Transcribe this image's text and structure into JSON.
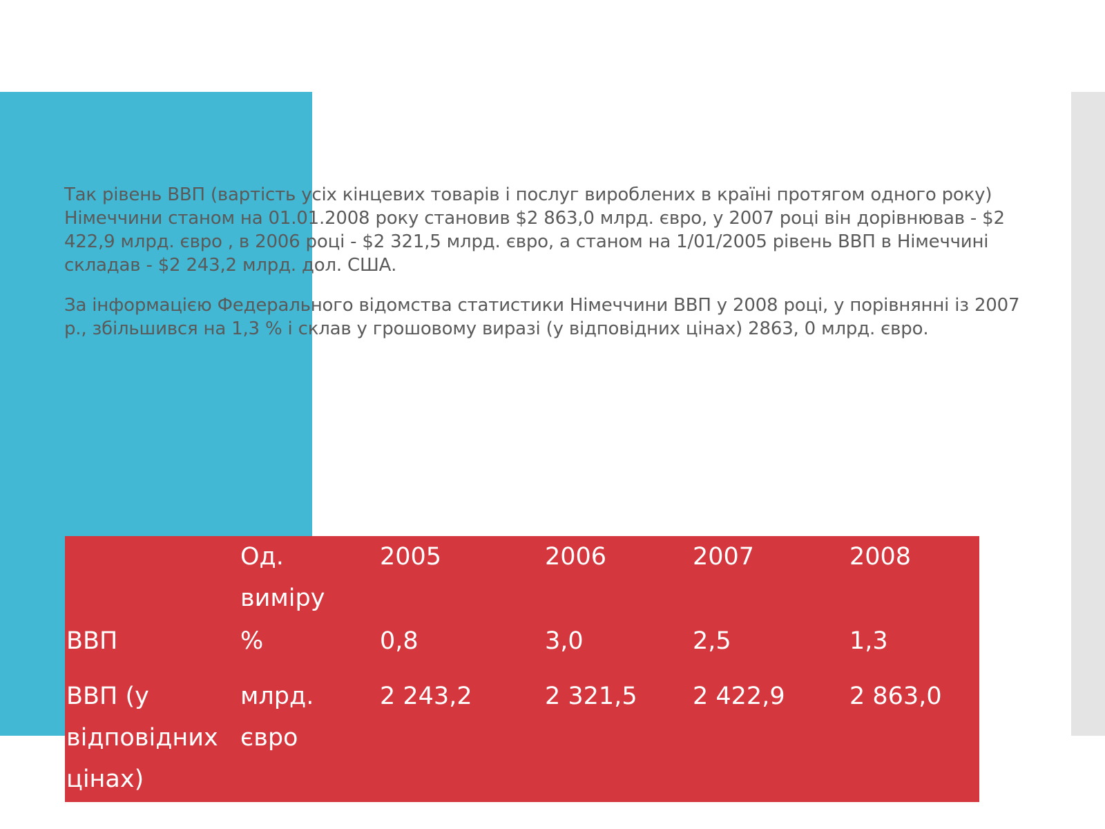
{
  "paragraphs": [
    "Так рівень ВВП (вартість усіх кінцевих товарів і послуг вироблених в країні протягом одного року) Німеччини станом на 01.01.2008 року становив $2 863,0 млрд. євро, у 2007 році він дорівнював - $2 422,9 млрд. євро , в 2006 році - $2 321,5 млрд. євро, а станом на 1/01/2005 рівень ВВП в Німеччині складав - $2 243,2 млрд. дол. США.",
    "За інформацією Федерального відомства статистики Німеччини ВВП у 2008 році, у порівнянні із 2007 р., збільшився на 1,3 % і склав у грошовому виразі (у відповідних цінах) 2863, 0 млрд. євро."
  ],
  "table": {
    "header": {
      "unit_line1": "Од.",
      "unit_line2": "виміру",
      "years": [
        "2005",
        "2006",
        "2007",
        "2008"
      ]
    },
    "row1": {
      "label": "ВВП",
      "unit": "%",
      "values": [
        "0,8",
        "3,0",
        "2,5",
        "1,3"
      ]
    },
    "row2": {
      "label_line1": "ВВП (у",
      "label_line2": "відповідних",
      "label_line3": "цінах)",
      "unit_line1": "млрд.",
      "unit_line2": "євро",
      "values": [
        "2 243,2",
        "2 321,5",
        "2 422,9",
        "2 863,0"
      ]
    }
  },
  "colors": {
    "accent_teal": "#42b8d4",
    "table_red": "#d5373e",
    "side_gray": "#e4e4e4",
    "text_gray": "#5a5a5a"
  }
}
